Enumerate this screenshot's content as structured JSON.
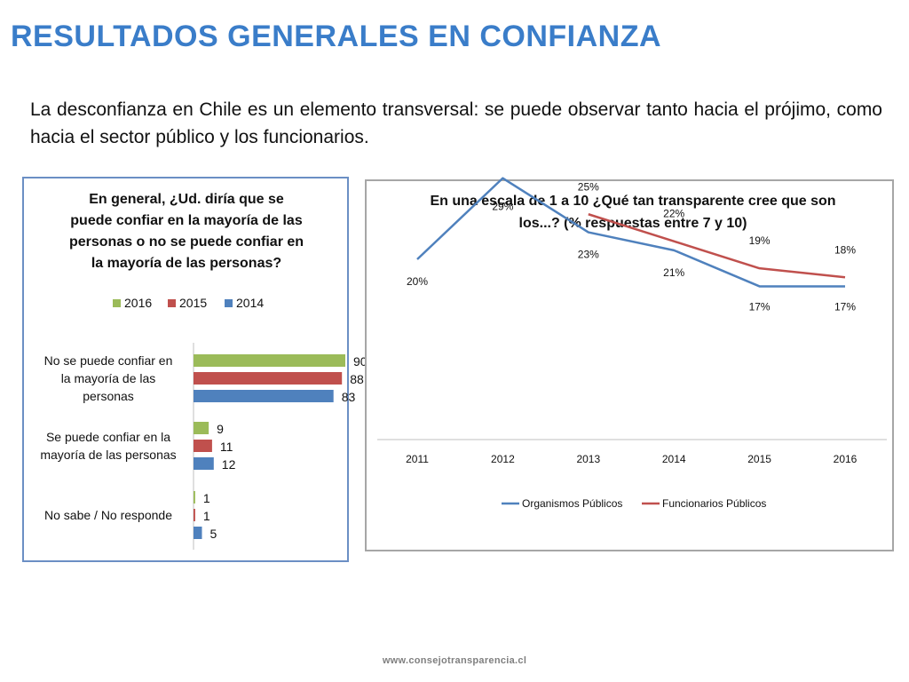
{
  "page": {
    "title": "RESULTADOS GENERALES EN CONFIANZA",
    "intro": "La desconfianza en Chile es un elemento transversal: se puede observar tanto hacia el prójimo, como hacia el sector público y los funcionarios.",
    "footer": "www.consejotransparencia.cl"
  },
  "chart_data": [
    {
      "type": "bar",
      "orientation": "horizontal",
      "title": "En general, ¿Ud. diría que se puede confiar en la mayoría de las personas o no se puede confiar en la mayoría de las personas?",
      "title_lines": [
        "En general, ¿Ud. diría que se",
        "puede confiar en la mayoría de las",
        "personas o no se puede confiar en",
        "la mayoría de las personas?"
      ],
      "categories": [
        "No se puede confiar en la mayoría de las personas",
        "Se puede confiar en la mayoría de las personas",
        "No sabe / No responde"
      ],
      "category_lines": [
        [
          "No se puede confiar en",
          "la mayoría de las",
          "personas"
        ],
        [
          "Se puede confiar en la",
          "mayoría de las personas"
        ],
        [
          "No sabe / No responde"
        ]
      ],
      "series": [
        {
          "name": "2016",
          "color": "#9bbb59",
          "values": [
            90,
            9,
            1
          ]
        },
        {
          "name": "2015",
          "color": "#c0504d",
          "values": [
            88,
            11,
            1
          ]
        },
        {
          "name": "2014",
          "color": "#4f81bd",
          "values": [
            83,
            12,
            5
          ]
        }
      ],
      "legend": "top",
      "grid": false
    },
    {
      "type": "line",
      "title": "En una escala de 1 a 10 ¿Qué tan transparente cree que son los...? (% respuestas entre 7 y 10)",
      "title_lines": [
        "En una escala de 1 a 10 ¿Qué tan transparente cree que son",
        "los...? (% respuestas entre 7 y 10)"
      ],
      "x": [
        "2011",
        "2012",
        "2013",
        "2014",
        "2015",
        "2016"
      ],
      "series": [
        {
          "name": "Organismos Públicos",
          "color": "#4f81bd",
          "values": [
            20,
            29,
            23,
            21,
            17,
            17
          ],
          "labels": [
            "20%",
            "29%",
            "23%",
            "21%",
            "17%",
            "17%"
          ]
        },
        {
          "name": "Funcionarios Públicos",
          "color": "#c0504d",
          "values": [
            null,
            null,
            25,
            22,
            19,
            18
          ],
          "labels": [
            "",
            "",
            "25%",
            "22%",
            "19%",
            "18%"
          ]
        }
      ],
      "ylim": [
        0,
        32
      ],
      "legend": "bottom",
      "grid": false
    }
  ]
}
